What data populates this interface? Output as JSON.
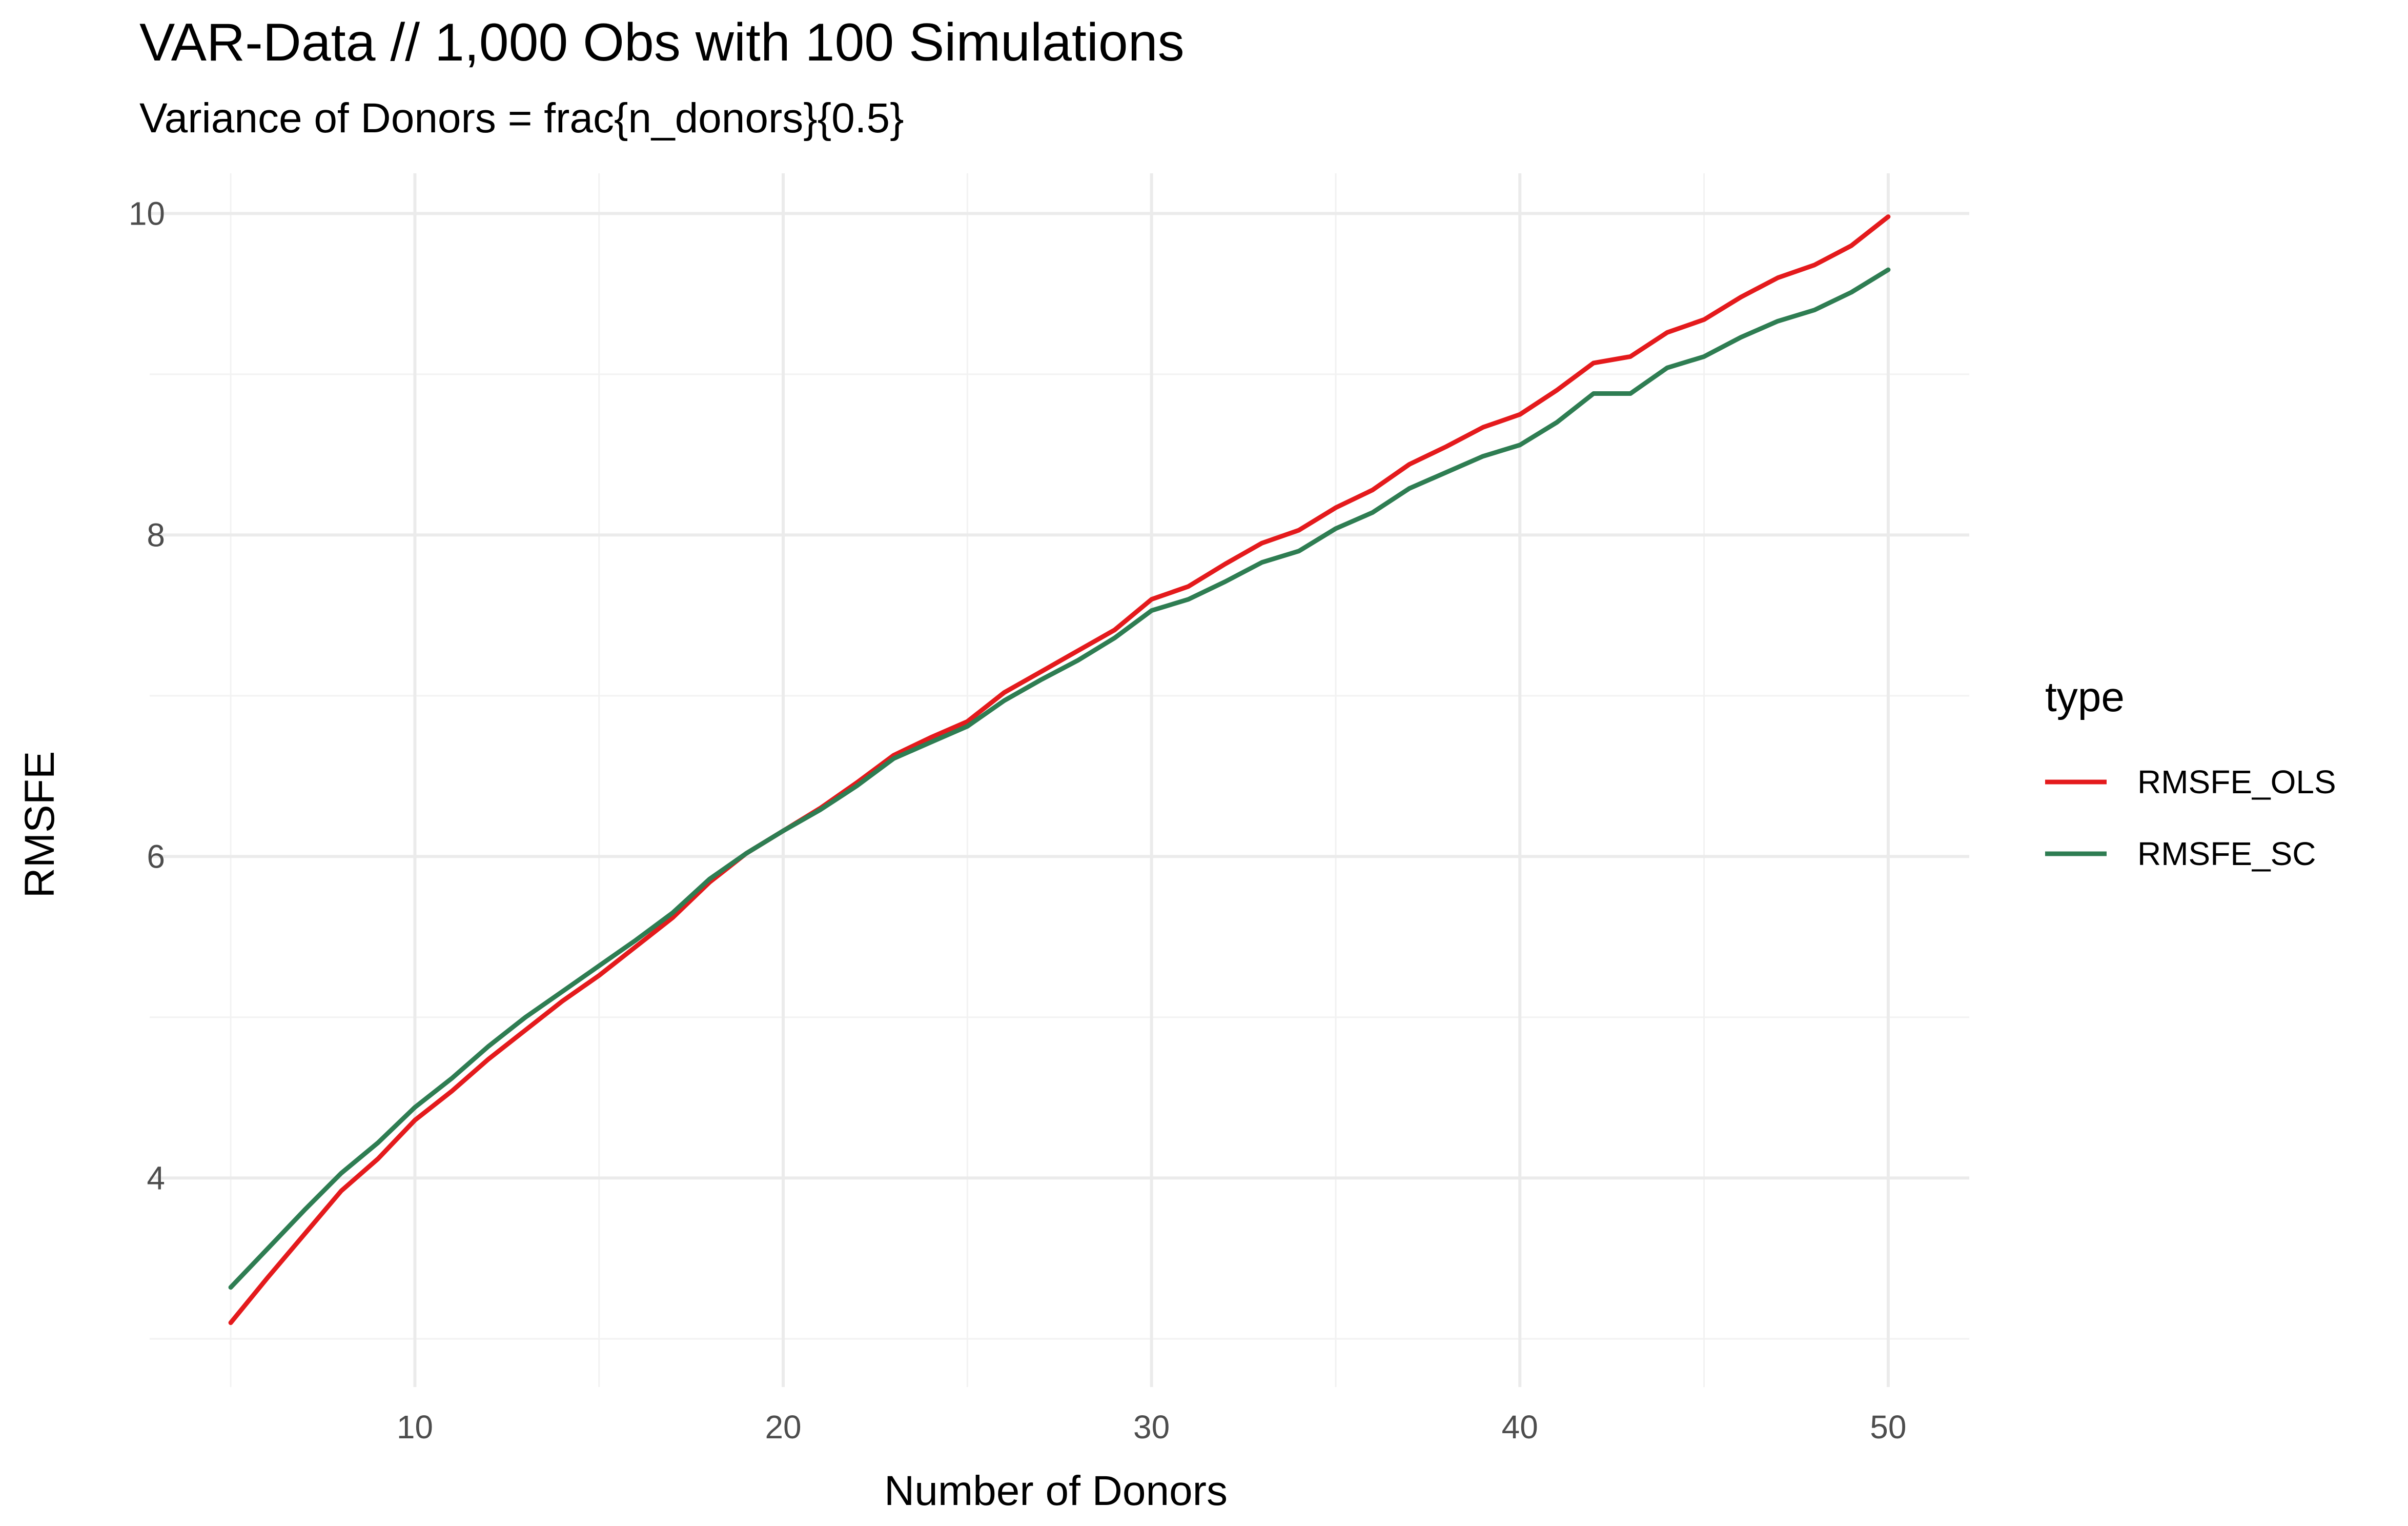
{
  "chart_data": {
    "type": "line",
    "title": "VAR-Data // 1,000 Obs with 100 Simulations",
    "subtitle": "Variance of Donors = frac{n_donors}{0.5}",
    "xlabel": "Number of Donors",
    "ylabel": "RMSFE",
    "xlim": [
      2.8,
      52.2
    ],
    "ylim": [
      2.7,
      10.25
    ],
    "x_ticks": [
      10,
      20,
      30,
      40,
      50
    ],
    "y_ticks": [
      4,
      6,
      8,
      10
    ],
    "x_minor_ticks": [
      5,
      15,
      25,
      35,
      45
    ],
    "y_minor_ticks": [
      3,
      5,
      7,
      9
    ],
    "grid": true,
    "legend": {
      "title": "type",
      "position": "right"
    },
    "x": [
      5,
      6,
      7,
      8,
      9,
      10,
      11,
      12,
      13,
      14,
      15,
      16,
      17,
      18,
      19,
      20,
      21,
      22,
      23,
      24,
      25,
      26,
      27,
      28,
      29,
      30,
      31,
      32,
      33,
      34,
      35,
      36,
      37,
      38,
      39,
      40,
      41,
      42,
      43,
      44,
      45,
      46,
      47,
      48,
      49,
      50
    ],
    "series": [
      {
        "name": "RMSFE_OLS",
        "color": "#e41a1c",
        "values": [
          3.1,
          3.38,
          3.65,
          3.92,
          4.12,
          4.36,
          4.54,
          4.74,
          4.92,
          5.1,
          5.26,
          5.44,
          5.62,
          5.84,
          6.02,
          6.16,
          6.3,
          6.46,
          6.63,
          6.74,
          6.84,
          7.02,
          7.15,
          7.28,
          7.41,
          7.6,
          7.68,
          7.82,
          7.95,
          8.03,
          8.17,
          8.28,
          8.44,
          8.55,
          8.67,
          8.75,
          8.9,
          9.07,
          9.11,
          9.26,
          9.34,
          9.48,
          9.6,
          9.68,
          9.8,
          9.98
        ]
      },
      {
        "name": "RMSFE_SC",
        "color": "#2e7d52",
        "values": [
          3.32,
          3.56,
          3.8,
          4.03,
          4.22,
          4.44,
          4.62,
          4.82,
          5.0,
          5.16,
          5.32,
          5.48,
          5.65,
          5.86,
          6.02,
          6.16,
          6.29,
          6.44,
          6.61,
          6.71,
          6.81,
          6.97,
          7.1,
          7.22,
          7.36,
          7.53,
          7.6,
          7.71,
          7.83,
          7.9,
          8.04,
          8.14,
          8.29,
          8.39,
          8.49,
          8.56,
          8.7,
          8.88,
          8.88,
          9.04,
          9.11,
          9.23,
          9.33,
          9.4,
          9.51,
          9.65
        ]
      }
    ]
  }
}
